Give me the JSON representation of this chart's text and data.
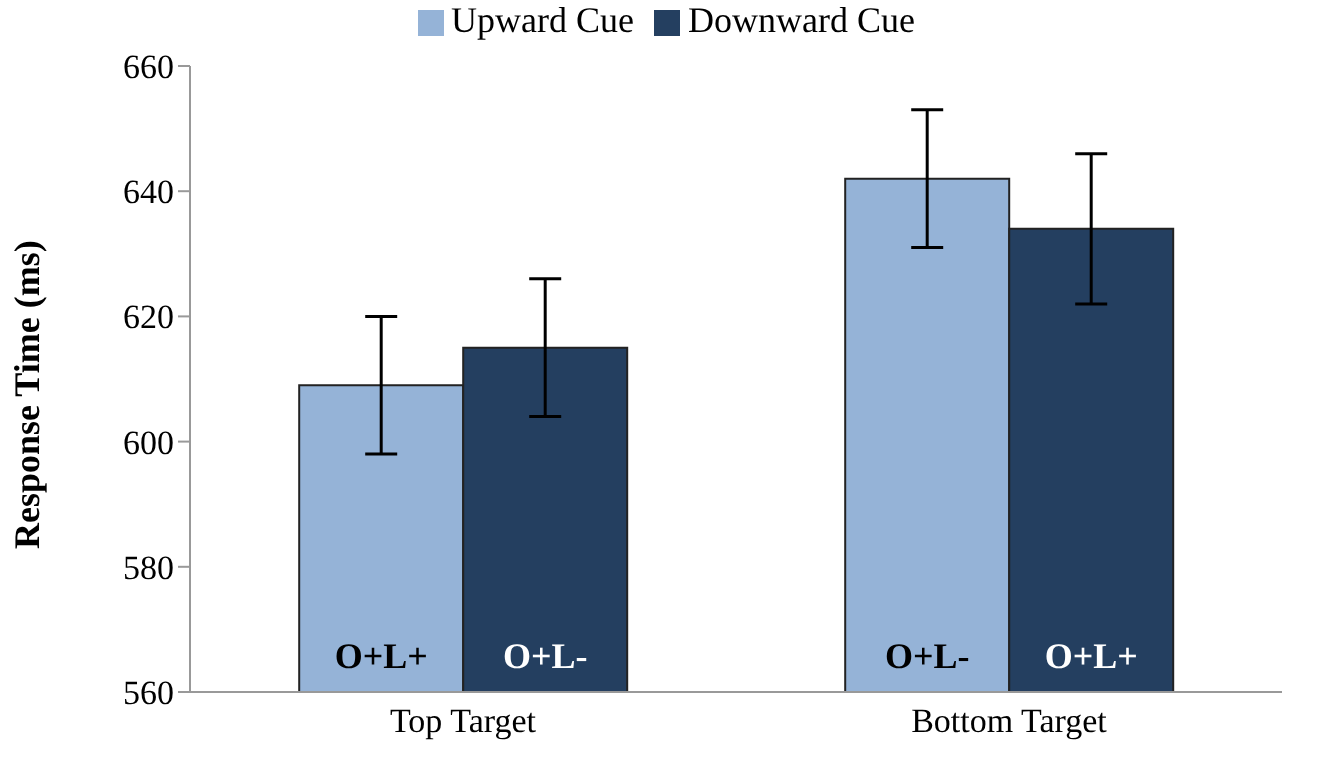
{
  "chart_data": {
    "type": "bar",
    "ylabel": "Response Time (ms)",
    "categories": [
      "Top Target",
      "Bottom Target"
    ],
    "series": [
      {
        "name": "Upward Cue",
        "color": "#95b3d7",
        "values": [
          609,
          642
        ],
        "errors": [
          11,
          11
        ]
      },
      {
        "name": "Downward Cue",
        "color": "#243f60",
        "values": [
          615,
          634
        ],
        "errors": [
          11,
          12
        ]
      }
    ],
    "ylim": [
      560,
      660
    ],
    "yticks": [
      560,
      580,
      600,
      620,
      640,
      660
    ],
    "grid": false,
    "legend": "top",
    "annotations": [
      {
        "text": "O+L+",
        "x": "Top Target",
        "y": 560
      },
      {
        "text": "O+L-",
        "x": "Top Target",
        "y": 560
      },
      {
        "text": "O+L-",
        "x": "Bottom Target",
        "y": 560
      },
      {
        "text": "O+L+",
        "x": "Bottom Target",
        "y": 560
      }
    ]
  }
}
